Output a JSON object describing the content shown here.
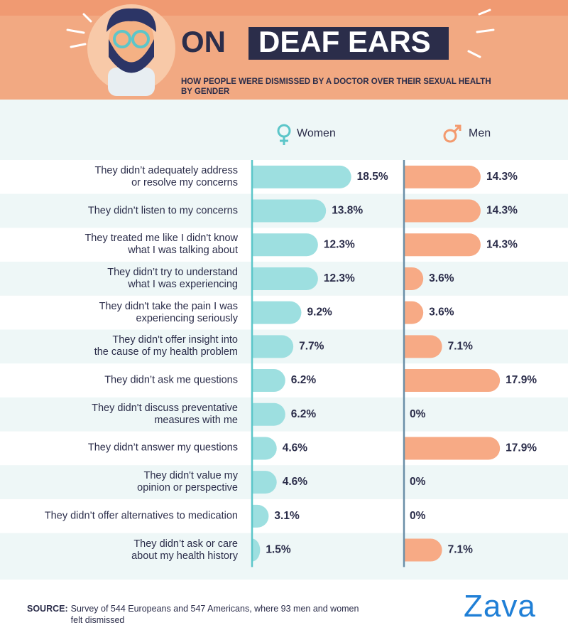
{
  "chart_data": {
    "type": "bar",
    "title": "ON",
    "title_highlight": "DEAF EARS",
    "subtitle": "HOW PEOPLE WERE DISMISSED BY A DOCTOR OVER THEIR SEXUAL HEALTH\nBY GENDER",
    "categories": [
      "They didn’t adequately address\nor resolve my concerns",
      "They didn’t listen to my concerns",
      "They treated me like I didn't know\nwhat I was talking about",
      "They didn’t try to understand\nwhat I was experiencing",
      "They didn't take the pain I was\nexperiencing seriously",
      "They didn't offer insight into\nthe cause of my health problem",
      "They didn’t ask me questions",
      "They didn't discuss preventative\nmeasures with me",
      "They didn’t answer my questions",
      "They didn't value my\nopinion or perspective",
      "They didn’t offer alternatives to medication",
      "They didn’t ask or care\nabout my health history"
    ],
    "series": [
      {
        "name": "Women",
        "color": "#9ddfe0",
        "values": [
          18.5,
          13.8,
          12.3,
          12.3,
          9.2,
          7.7,
          6.2,
          6.2,
          4.6,
          4.6,
          3.1,
          1.5
        ],
        "value_labels": [
          "18.5%",
          "13.8%",
          "12.3%",
          "12.3%",
          "9.2%",
          "7.7%",
          "6.2%",
          "6.2%",
          "4.6%",
          "4.6%",
          "3.1%",
          "1.5%"
        ]
      },
      {
        "name": "Men",
        "color": "#f7aa85",
        "values": [
          14.3,
          14.3,
          14.3,
          3.6,
          3.6,
          7.1,
          17.9,
          0,
          17.9,
          0,
          0,
          7.1
        ],
        "value_labels": [
          "14.3%",
          "14.3%",
          "14.3%",
          "3.6%",
          "3.6%",
          "7.1%",
          "17.9%",
          "0%",
          "17.9%",
          "0%",
          "0%",
          "7.1%"
        ]
      }
    ]
  },
  "footer": {
    "source_label": "SOURCE:",
    "source_text": "Survey of 544 Europeans and 547 Americans, where 93 men and women felt dismissed",
    "logo": "Zava"
  }
}
